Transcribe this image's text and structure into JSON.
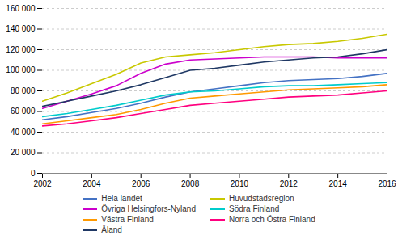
{
  "chart_data": {
    "type": "line",
    "x": [
      2002,
      2003,
      2004,
      2005,
      2006,
      2007,
      2008,
      2009,
      2010,
      2011,
      2012,
      2013,
      2014,
      2015,
      2016
    ],
    "series": [
      {
        "name": "Hela landet",
        "color": "#4472C4",
        "values": [
          52000,
          55000,
          59000,
          63000,
          68000,
          74000,
          79000,
          82000,
          85000,
          88000,
          90000,
          91000,
          92000,
          94000,
          97000
        ]
      },
      {
        "name": "Huvudstadsregion",
        "color": "#C8C800",
        "values": [
          70000,
          78000,
          87000,
          96000,
          107000,
          113000,
          115000,
          117000,
          120000,
          123000,
          125000,
          126000,
          128000,
          131000,
          135000
        ]
      },
      {
        "name": "Övriga Helsingfors-Nyland",
        "color": "#CC00CC",
        "values": [
          63000,
          70000,
          77000,
          85000,
          97000,
          106000,
          110000,
          111000,
          112000,
          113000,
          113000,
          113000,
          112000,
          112000,
          112000
        ]
      },
      {
        "name": "Södra Finland",
        "color": "#00CCCC",
        "values": [
          55000,
          58000,
          62000,
          66000,
          71000,
          76000,
          79000,
          80000,
          82000,
          84000,
          85000,
          85000,
          86000,
          87000,
          88000
        ]
      },
      {
        "name": "Västra Finland",
        "color": "#FF9900",
        "values": [
          48000,
          51000,
          54000,
          57000,
          62000,
          68000,
          73000,
          75000,
          77000,
          79000,
          81000,
          82000,
          83000,
          84000,
          86000
        ]
      },
      {
        "name": "Norra och Östra Finland",
        "color": "#FF007F",
        "values": [
          46000,
          48000,
          51000,
          54000,
          58000,
          62000,
          66000,
          68000,
          70000,
          72000,
          74000,
          75000,
          76000,
          78000,
          80000
        ]
      },
      {
        "name": "Åland",
        "color": "#1F3864",
        "values": [
          65000,
          70000,
          75000,
          80000,
          86000,
          93000,
          100000,
          102000,
          105000,
          108000,
          110000,
          112000,
          113000,
          116000,
          120000
        ]
      }
    ],
    "xlim": [
      2002,
      2016
    ],
    "xticks": [
      2002,
      2004,
      2006,
      2008,
      2010,
      2012,
      2014,
      2016
    ],
    "ylim": [
      0,
      160000
    ],
    "yticks": [
      0,
      {
        "value": 20000,
        "label": "20 000"
      },
      {
        "value": 40000,
        "label": "40 000"
      },
      {
        "value": 60000,
        "label": "60 000"
      },
      {
        "value": 80000,
        "label": "80 000"
      },
      {
        "value": 100000,
        "label": "100 000"
      },
      {
        "value": 120000,
        "label": "120 000"
      },
      {
        "value": 140000,
        "label": "140 000"
      },
      {
        "value": 160000,
        "label": "160 000"
      }
    ],
    "grid": true
  }
}
